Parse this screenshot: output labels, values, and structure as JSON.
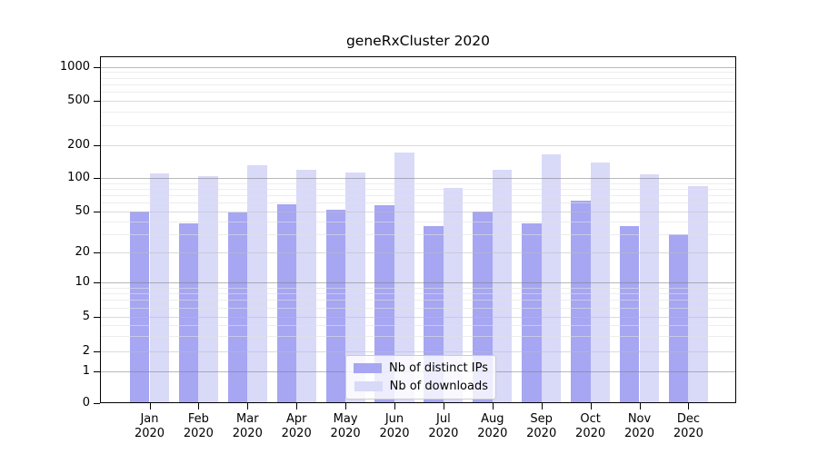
{
  "chart_data": {
    "type": "bar",
    "title": "geneRxCluster 2020",
    "scale": "log above 1, linear 0-1 (symlog-like)",
    "grid": "horizontal on",
    "legend_position": "bottom-center inside plot",
    "categories": [
      {
        "line1": "Jan",
        "line2": "2020"
      },
      {
        "line1": "Feb",
        "line2": "2020"
      },
      {
        "line1": "Mar",
        "line2": "2020"
      },
      {
        "line1": "Apr",
        "line2": "2020"
      },
      {
        "line1": "May",
        "line2": "2020"
      },
      {
        "line1": "Jun",
        "line2": "2020"
      },
      {
        "line1": "Jul",
        "line2": "2020"
      },
      {
        "line1": "Aug",
        "line2": "2020"
      },
      {
        "line1": "Sep",
        "line2": "2020"
      },
      {
        "line1": "Oct",
        "line2": "2020"
      },
      {
        "line1": "Nov",
        "line2": "2020"
      },
      {
        "line1": "Dec",
        "line2": "2020"
      }
    ],
    "series": [
      {
        "name": "Nb of distinct IPs",
        "color": "#a6a6f2",
        "values": [
          50,
          38,
          49,
          58,
          52,
          57,
          36,
          50,
          38,
          63,
          36,
          30
        ]
      },
      {
        "name": "Nb of downloads",
        "color": "#d9d9f8",
        "values": [
          110,
          104,
          130,
          120,
          113,
          170,
          81,
          119,
          165,
          140,
          107,
          85
        ]
      }
    ],
    "y_ticks": [
      0,
      1,
      2,
      5,
      10,
      20,
      50,
      100,
      200,
      500,
      1000
    ],
    "y_major_ticks": [
      1,
      10,
      100,
      1000
    ],
    "y_minor_ticks": [
      3,
      4,
      6,
      7,
      8,
      9,
      30,
      40,
      60,
      70,
      80,
      90,
      300,
      400,
      600,
      700,
      800,
      900
    ],
    "ylim": [
      0,
      1240
    ],
    "xlabel": "",
    "ylabel": "",
    "colors": {
      "grid_major": "rgba(128,128,128,0.55)",
      "grid_labeled": "rgba(190,190,190,0.55)",
      "grid_minor": "rgba(225,225,225,0.6)",
      "axis": "#000000",
      "legend_border": "#cccccc"
    }
  }
}
